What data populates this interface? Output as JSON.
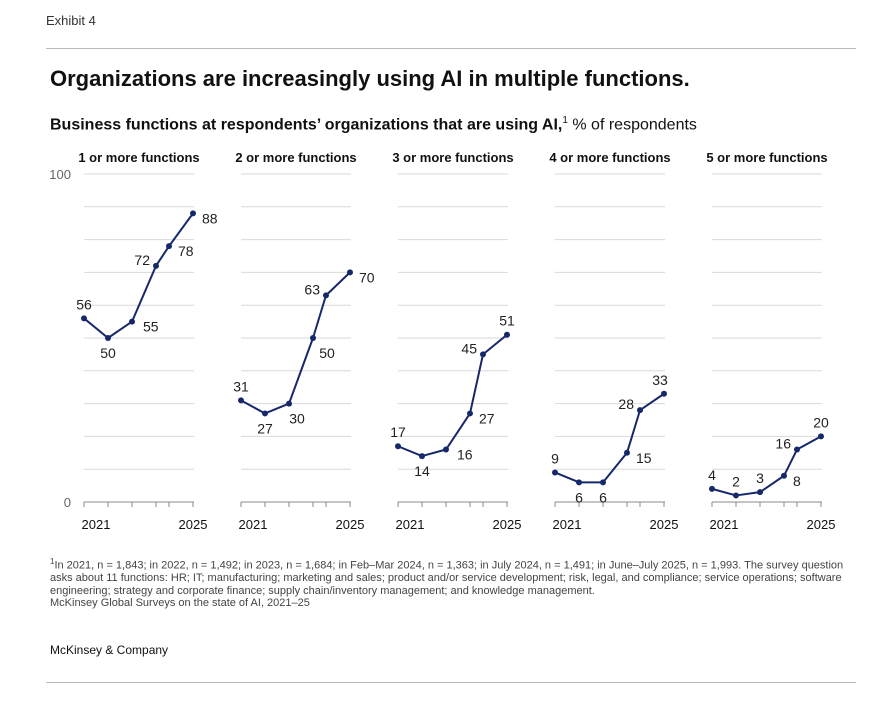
{
  "header": {
    "exhibit": "Exhibit 4"
  },
  "title": "Organizations are increasingly using AI in multiple functions.",
  "subtitle": {
    "bold": "Business functions at respondents’ organizations that are using AI,",
    "sup": "1",
    "unit": " % of respondents"
  },
  "chart_data": {
    "type": "line",
    "title": "Business functions at respondents’ organizations that are using AI",
    "ylabel": "% of respondents",
    "ylim": [
      0,
      100
    ],
    "y_ticks": [
      "100",
      "0"
    ],
    "x_start_label": "2021",
    "x_end_label": "2025",
    "x": [
      "2021",
      "2022",
      "2023",
      "Feb–Mar 2024",
      "July 2024",
      "June–July 2025"
    ],
    "series": [
      {
        "name": "1 or more functions",
        "values": [
          56,
          50,
          55,
          72,
          78,
          88
        ]
      },
      {
        "name": "2 or more functions",
        "values": [
          31,
          27,
          30,
          50,
          63,
          70
        ]
      },
      {
        "name": "3 or more functions",
        "values": [
          17,
          14,
          16,
          27,
          45,
          51
        ]
      },
      {
        "name": "4 or more functions",
        "values": [
          9,
          6,
          6,
          15,
          28,
          33
        ]
      },
      {
        "name": "5 or more functions",
        "values": [
          4,
          2,
          3,
          8,
          16,
          20
        ]
      }
    ],
    "line_color": "#16286b",
    "grid_color": "#d9d9d9"
  },
  "footnote": {
    "sup": "1",
    "text": "In 2021, n = 1,843; in 2022, n = 1,492; in 2023, n = 1,684; in Feb–Mar 2024, n = 1,363; in July 2024, n = 1,491; in June–July 2025, n = 1,993. The survey question asks about 11 functions: HR; IT; manufacturing; marketing and sales; product and/or service development; risk, legal, and compliance; service operations; software engineering; strategy and corporate finance; supply chain/inventory management; and knowledge management.",
    "source": "McKinsey Global Surveys on the state of AI, 2021–25"
  },
  "brand": "McKinsey & Company"
}
